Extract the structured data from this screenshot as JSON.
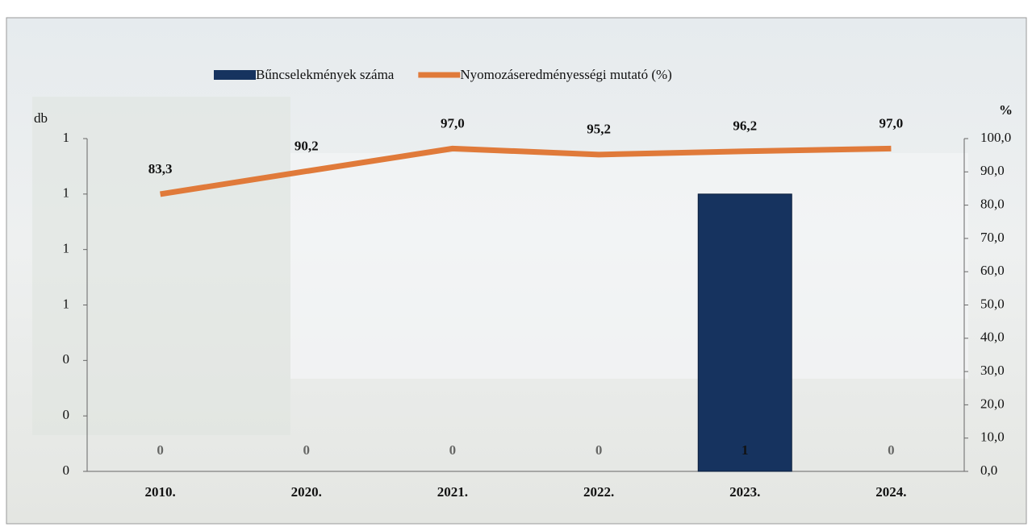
{
  "chart_data": {
    "type": "combo",
    "y_label": "db",
    "y2_label": "%",
    "categories": [
      "2010.",
      "2020.",
      "2021.",
      "2022.",
      "2023.",
      "2024."
    ],
    "series": [
      {
        "name": "Bűncselekmények száma",
        "type": "bar",
        "color": "#16335f",
        "values": [
          0,
          0,
          0,
          0,
          1,
          0
        ]
      },
      {
        "name": "Nyomozáseredményességi mutató (%)",
        "type": "line",
        "axis": "y2",
        "color": "#e07a3a",
        "values": [
          83.3,
          90.2,
          97.0,
          95.2,
          96.2,
          97.0
        ],
        "value_labels": [
          "83,3",
          "90,2",
          "97,0",
          "95,2",
          "96,2",
          "97,0"
        ]
      }
    ],
    "ylim": [
      0,
      1.2
    ],
    "yticks": [
      {
        "value": 0,
        "label": "0"
      },
      {
        "value": 0.2,
        "label": "0"
      },
      {
        "value": 0.4,
        "label": "0"
      },
      {
        "value": 0.6,
        "label": "1"
      },
      {
        "value": 0.8,
        "label": "1"
      },
      {
        "value": 1.0,
        "label": "1"
      },
      {
        "value": 1.2,
        "label": "1"
      }
    ],
    "y2lim": [
      0,
      100
    ],
    "y2ticks": [
      {
        "value": 0,
        "label": "0,0"
      },
      {
        "value": 10,
        "label": "10,0"
      },
      {
        "value": 20,
        "label": "20,0"
      },
      {
        "value": 30,
        "label": "30,0"
      },
      {
        "value": 40,
        "label": "40,0"
      },
      {
        "value": 50,
        "label": "50,0"
      },
      {
        "value": 60,
        "label": "60,0"
      },
      {
        "value": 70,
        "label": "70,0"
      },
      {
        "value": 80,
        "label": "80,0"
      },
      {
        "value": 90,
        "label": "90,0"
      },
      {
        "value": 100,
        "label": "100,0"
      }
    ],
    "legend": "top"
  }
}
